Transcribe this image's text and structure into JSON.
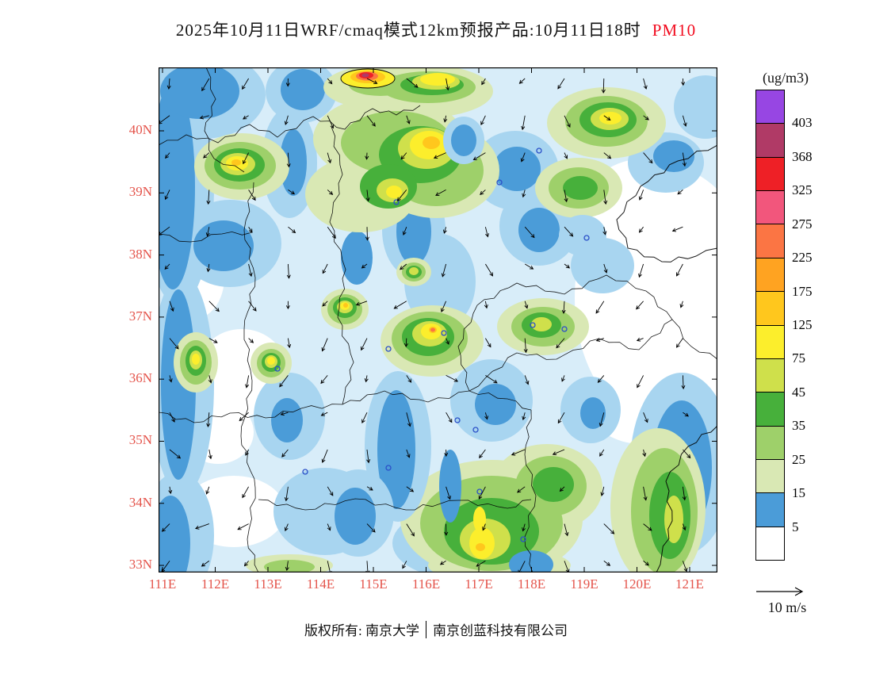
{
  "title": {
    "main": "2025年10月11日WRF/cmaq模式12km预报产品:10月11日18时",
    "pollutant": "PM10"
  },
  "axes": {
    "lat": [
      "40N",
      "39N",
      "38N",
      "37N",
      "36N",
      "35N",
      "34N",
      "33N"
    ],
    "lon": [
      "111E",
      "112E",
      "113E",
      "114E",
      "115E",
      "116E",
      "117E",
      "118E",
      "119E",
      "120E",
      "121E"
    ]
  },
  "colorbar": {
    "unit": "(ug/m3)",
    "ticks": [
      "403",
      "368",
      "325",
      "275",
      "225",
      "175",
      "125",
      "75",
      "45",
      "35",
      "25",
      "15",
      "5"
    ],
    "colors": [
      "#9746e3",
      "#b03a66",
      "#ee2026",
      "#f2567c",
      "#fb7544",
      "#ffa321",
      "#ffc71d",
      "#fcee2c",
      "#cfe04b",
      "#47b03b",
      "#9ed06a",
      "#d9e8b4",
      "#4b9cd8",
      "#ffffff"
    ]
  },
  "wind": {
    "reference": "10 m/s"
  },
  "footer": {
    "owner": "版权所有: 南京大学",
    "company": "南京创蓝科技有限公司"
  }
}
